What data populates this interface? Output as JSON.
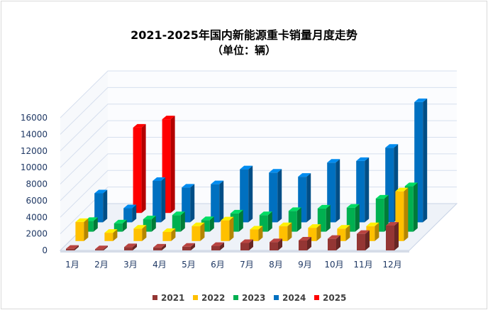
{
  "chart_data": {
    "type": "bar",
    "title": "2021-2025年国内新能源重卡销量月度走势",
    "subtitle": "（单位：辆）",
    "categories": [
      "1月",
      "2月",
      "3月",
      "4月",
      "5月",
      "6月",
      "7月",
      "8月",
      "9月",
      "10月",
      "11月",
      "12月"
    ],
    "y_ticks": [
      "0",
      "2000",
      "4000",
      "6000",
      "8000",
      "10000",
      "12000",
      "14000",
      "16000"
    ],
    "ylim": [
      0,
      16000
    ],
    "legend_position": "bottom",
    "grid": true,
    "series": [
      {
        "name": "2021",
        "color": "#943634",
        "values": [
          200,
          150,
          400,
          350,
          450,
          550,
          900,
          1000,
          1200,
          1400,
          2000,
          3000
        ]
      },
      {
        "name": "2022",
        "color": "#ffc000",
        "values": [
          2300,
          1000,
          1500,
          1100,
          1800,
          2500,
          1400,
          1800,
          1600,
          1500,
          1800,
          6000
        ]
      },
      {
        "name": "2023",
        "color": "#00b050",
        "values": [
          1300,
          1000,
          1500,
          2000,
          1400,
          2200,
          2000,
          2500,
          2800,
          2900,
          4000,
          5500
        ]
      },
      {
        "name": "2024",
        "color": "#0070c0",
        "values": [
          3500,
          1700,
          5000,
          4200,
          4600,
          6400,
          6000,
          5500,
          7200,
          7400,
          9000,
          14500
        ]
      },
      {
        "name": "2025",
        "color": "#ff0000",
        "values": [
          null,
          10300,
          11300,
          null,
          null,
          null,
          null,
          null,
          null,
          null,
          null,
          null
        ]
      }
    ]
  }
}
